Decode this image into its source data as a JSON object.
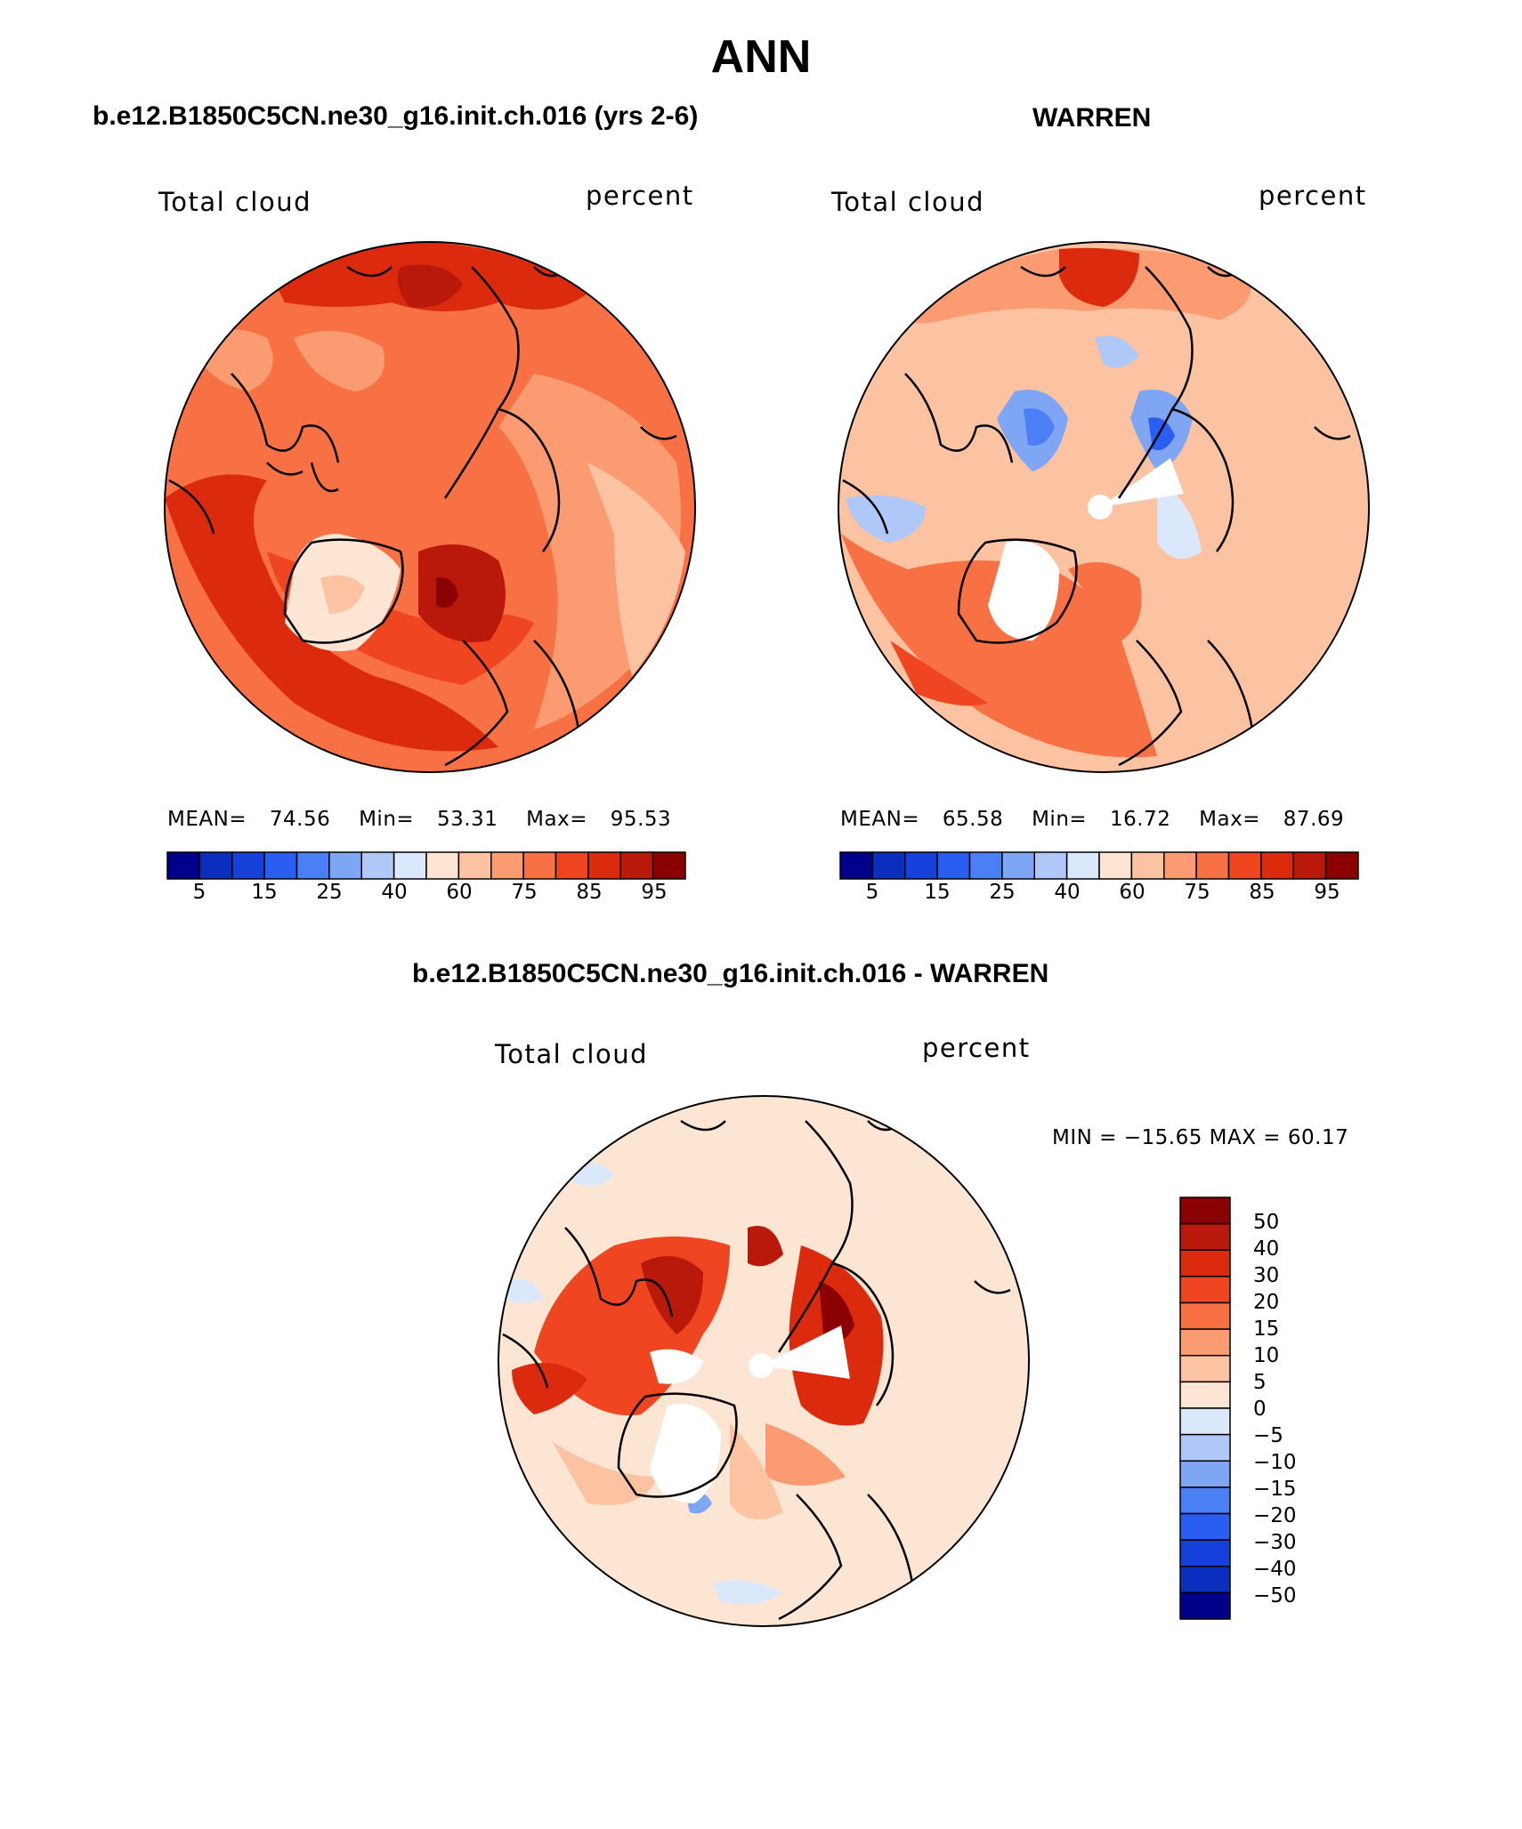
{
  "figure": {
    "season": "ANN",
    "colors": {
      "diverging": [
        "#00008b",
        "#0a2fbf",
        "#1640d9",
        "#2a5ef0",
        "#4a7ff5",
        "#7ea6f5",
        "#b0c8f7",
        "#dbe8fb",
        "#fde5d3",
        "#fcc3a2",
        "#fb9b72",
        "#f87145",
        "#ef4520",
        "#dc2a0e",
        "#b8190a",
        "#8b0000"
      ],
      "land": "#000000"
    }
  },
  "panels": [
    {
      "id": "model",
      "title": "b.e12.B1850C5CN.ne30_g16.init.ch.016 (yrs 2-6)",
      "field_label": "Total cloud",
      "units_label": "percent",
      "stats": {
        "mean_label": "MEAN=",
        "mean": "74.56",
        "min_label": "Min=",
        "min": "53.31",
        "max_label": "Max=",
        "max": "95.53"
      },
      "colorbar_ticks": [
        "5",
        "15",
        "25",
        "40",
        "60",
        "75",
        "85",
        "95"
      ]
    },
    {
      "id": "obs",
      "title": "WARREN",
      "field_label": "Total cloud",
      "units_label": "percent",
      "stats": {
        "mean_label": "MEAN=",
        "mean": "65.58",
        "min_label": "Min=",
        "min": "16.72",
        "max_label": "Max=",
        "max": "87.69"
      },
      "colorbar_ticks": [
        "5",
        "15",
        "25",
        "40",
        "60",
        "75",
        "85",
        "95"
      ]
    },
    {
      "id": "diff",
      "title": "b.e12.B1850C5CN.ne30_g16.init.ch.016 - WARREN",
      "field_label": "Total cloud",
      "units_label": "percent",
      "stats_text": "MIN = −15.65 MAX =   60.17",
      "colorbar_ticks": [
        "50",
        "40",
        "30",
        "20",
        "15",
        "10",
        "5",
        "0",
        "−5",
        "−10",
        "−15",
        "−20",
        "−30",
        "−40",
        "−50"
      ]
    }
  ]
}
